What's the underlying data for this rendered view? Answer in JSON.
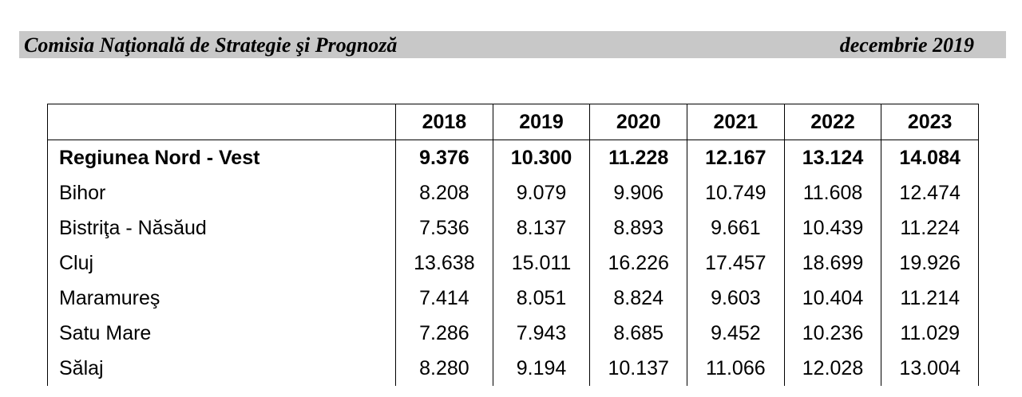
{
  "header": {
    "organization": "Comisia Naţională de Strategie şi Prognoză",
    "date": "decembrie 2019"
  },
  "table": {
    "columns": [
      "",
      "2018",
      "2019",
      "2020",
      "2021",
      "2022",
      "2023"
    ],
    "rows": [
      {
        "name": "Regiunea Nord - Vest",
        "bold": true,
        "values": [
          "9.376",
          "10.300",
          "11.228",
          "12.167",
          "13.124",
          "14.084"
        ]
      },
      {
        "name": "Bihor",
        "bold": false,
        "values": [
          "8.208",
          "9.079",
          "9.906",
          "10.749",
          "11.608",
          "12.474"
        ]
      },
      {
        "name": "Bistriţa - Năsăud",
        "bold": false,
        "values": [
          "7.536",
          "8.137",
          "8.893",
          "9.661",
          "10.439",
          "11.224"
        ]
      },
      {
        "name": "Cluj",
        "bold": false,
        "values": [
          "13.638",
          "15.011",
          "16.226",
          "17.457",
          "18.699",
          "19.926"
        ]
      },
      {
        "name": "Maramureş",
        "bold": false,
        "values": [
          "7.414",
          "8.051",
          "8.824",
          "9.603",
          "10.404",
          "11.214"
        ]
      },
      {
        "name": "Satu Mare",
        "bold": false,
        "values": [
          "7.286",
          "7.943",
          "8.685",
          "9.452",
          "10.236",
          "11.029"
        ]
      },
      {
        "name": "Sălaj",
        "bold": false,
        "values": [
          "8.280",
          "9.194",
          "10.137",
          "11.066",
          "12.028",
          "13.004"
        ]
      }
    ]
  }
}
